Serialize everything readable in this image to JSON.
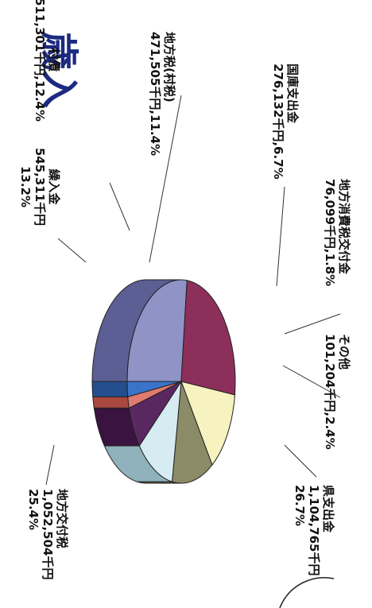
{
  "chart_data": {
    "type": "pie",
    "title": "歳入",
    "unit": "千円",
    "slices": [
      {
        "name": "県支出金",
        "value_text": "1,104,765千円",
        "pct_text": "26.7%",
        "value": 1104765,
        "pct": 26.7,
        "color": "#8f93c6",
        "side": "#5c5f94"
      },
      {
        "name": "地方交付税",
        "value_text": "1,052,504千円",
        "pct_text": "25.4%",
        "value": 1052504,
        "pct": 25.4,
        "color": "#8d2f5b",
        "side": "#5a1733"
      },
      {
        "name": "繰入金",
        "value_text": "545,311千円",
        "pct_text": "13.2%",
        "value": 545311,
        "pct": 13.2,
        "color": "#f7f3c1",
        "side": "#b3ad73"
      },
      {
        "name": "村債",
        "value_text": "511,301千円",
        "pct_text": "12.4%",
        "value": 511301,
        "pct": 12.4,
        "color": "#8c8b67",
        "side": "#5c5b3f"
      },
      {
        "name": "地方税(村税)",
        "value_text": "471,505千円",
        "pct_text": "11.4%",
        "value": 471505,
        "pct": 11.4,
        "color": "#d6ecf2",
        "side": "#8fb2bc"
      },
      {
        "name": "国庫支出金",
        "value_text": "276,132千円",
        "pct_text": "6.7%",
        "value": 276132,
        "pct": 6.7,
        "color": "#5a2860",
        "side": "#3a1340"
      },
      {
        "name": "地方消費税交付金",
        "value_text": "76,099千円",
        "pct_text": "1.8%",
        "value": 76099,
        "pct": 1.8,
        "color": "#e37a6f",
        "side": "#a8483f"
      },
      {
        "name": "その他",
        "value_text": "101,204千円",
        "pct_text": "2.4%",
        "value": 101204,
        "pct": 2.4,
        "color": "#3a73c8",
        "side": "#244e8e"
      }
    ]
  }
}
